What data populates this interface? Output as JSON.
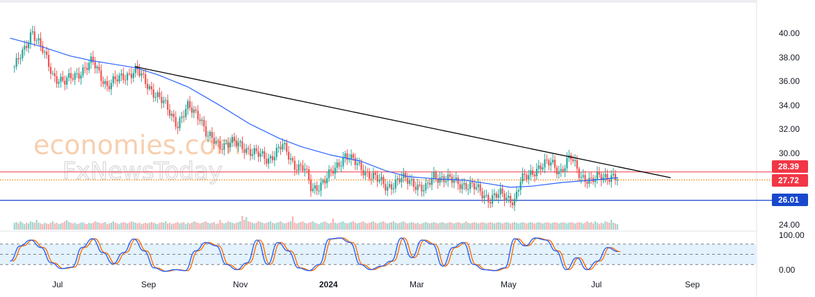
{
  "watermark": {
    "line1": "economies.com",
    "line2": "FxNewsToday"
  },
  "colors": {
    "up": "#26a69a",
    "down": "#ef5350",
    "ma": "#2962ff",
    "trend": "#000000",
    "resistance": "#f23645",
    "support": "#1848cc",
    "current": "#f57c00",
    "stoch_k": "#2962ff",
    "stoch_d": "#ff6d00",
    "stoch_band": "#e3f2fd"
  },
  "chart_data": [
    {
      "type": "candlestick",
      "title": "",
      "x_tick_labels": [
        "Jul",
        "Sep",
        "Nov",
        "2024",
        "Mar",
        "May",
        "Jul",
        "Sep"
      ],
      "y_tick_labels": [
        "40.00",
        "38.00",
        "36.00",
        "34.00",
        "32.00",
        "30.00",
        "24.00"
      ],
      "ylim": [
        23.4,
        41.2
      ],
      "grid": false,
      "price_tags": [
        {
          "value": 28.39,
          "label": "28.39",
          "role": "resistance"
        },
        {
          "value": 27.72,
          "label": "27.72",
          "role": "last price"
        },
        {
          "value": 26.01,
          "label": "26.01",
          "role": "support"
        }
      ],
      "close_anchors": [
        {
          "x": "2023-06-01",
          "y": 37.2
        },
        {
          "x": "2023-06-08",
          "y": 38.6
        },
        {
          "x": "2023-06-13",
          "y": 40.3
        },
        {
          "x": "2023-06-20",
          "y": 38.6
        },
        {
          "x": "2023-06-27",
          "y": 36.5
        },
        {
          "x": "2023-07-05",
          "y": 35.9
        },
        {
          "x": "2023-07-14",
          "y": 36.6
        },
        {
          "x": "2023-07-24",
          "y": 37.6
        },
        {
          "x": "2023-08-03",
          "y": 35.6
        },
        {
          "x": "2023-08-14",
          "y": 36.4
        },
        {
          "x": "2023-08-23",
          "y": 36.9
        },
        {
          "x": "2023-08-31",
          "y": 35.6
        },
        {
          "x": "2023-09-10",
          "y": 34.2
        },
        {
          "x": "2023-09-20",
          "y": 32.4
        },
        {
          "x": "2023-09-27",
          "y": 33.8
        },
        {
          "x": "2023-10-05",
          "y": 33.1
        },
        {
          "x": "2023-10-10",
          "y": 31.4
        },
        {
          "x": "2023-10-18",
          "y": 30.6
        },
        {
          "x": "2023-10-26",
          "y": 30.9
        },
        {
          "x": "2023-11-08",
          "y": 30.2
        },
        {
          "x": "2023-11-20",
          "y": 29.4
        },
        {
          "x": "2023-11-30",
          "y": 30.6
        },
        {
          "x": "2023-12-08",
          "y": 29.0
        },
        {
          "x": "2023-12-15",
          "y": 28.7
        },
        {
          "x": "2023-12-20",
          "y": 26.8
        },
        {
          "x": "2023-12-27",
          "y": 27.5
        },
        {
          "x": "2024-01-05",
          "y": 28.6
        },
        {
          "x": "2024-01-12",
          "y": 29.9
        },
        {
          "x": "2024-01-22",
          "y": 28.7
        },
        {
          "x": "2024-01-31",
          "y": 28.0
        },
        {
          "x": "2024-02-09",
          "y": 27.1
        },
        {
          "x": "2024-02-19",
          "y": 27.8
        },
        {
          "x": "2024-02-26",
          "y": 27.6
        },
        {
          "x": "2024-03-06",
          "y": 26.8
        },
        {
          "x": "2024-03-12",
          "y": 28.1
        },
        {
          "x": "2024-03-22",
          "y": 27.7
        },
        {
          "x": "2024-03-31",
          "y": 27.4
        },
        {
          "x": "2024-04-10",
          "y": 27.0
        },
        {
          "x": "2024-04-19",
          "y": 26.1
        },
        {
          "x": "2024-04-26",
          "y": 26.5
        },
        {
          "x": "2024-05-06",
          "y": 26.0
        },
        {
          "x": "2024-05-10",
          "y": 27.6
        },
        {
          "x": "2024-05-20",
          "y": 28.6
        },
        {
          "x": "2024-05-31",
          "y": 29.2
        },
        {
          "x": "2024-06-06",
          "y": 28.4
        },
        {
          "x": "2024-06-13",
          "y": 29.6
        },
        {
          "x": "2024-06-20",
          "y": 28.1
        },
        {
          "x": "2024-06-27",
          "y": 27.5
        },
        {
          "x": "2024-07-03",
          "y": 28.1
        },
        {
          "x": "2024-07-10",
          "y": 28.0
        },
        {
          "x": "2024-07-15",
          "y": 27.72
        }
      ],
      "moving_average": [
        {
          "x": "2023-05-29",
          "y": 39.6
        },
        {
          "x": "2023-06-19",
          "y": 38.9
        },
        {
          "x": "2023-07-09",
          "y": 38.1
        },
        {
          "x": "2023-07-24",
          "y": 37.7
        },
        {
          "x": "2023-08-08",
          "y": 37.4
        },
        {
          "x": "2023-08-23",
          "y": 37.1
        },
        {
          "x": "2023-09-07",
          "y": 36.5
        },
        {
          "x": "2023-09-27",
          "y": 35.5
        },
        {
          "x": "2023-10-18",
          "y": 34.0
        },
        {
          "x": "2023-11-08",
          "y": 32.4
        },
        {
          "x": "2023-11-28",
          "y": 31.2
        },
        {
          "x": "2023-12-13",
          "y": 30.5
        },
        {
          "x": "2024-01-02",
          "y": 29.8
        },
        {
          "x": "2024-01-22",
          "y": 29.3
        },
        {
          "x": "2024-02-08",
          "y": 28.5
        },
        {
          "x": "2024-02-23",
          "y": 28.0
        },
        {
          "x": "2024-03-14",
          "y": 27.8
        },
        {
          "x": "2024-04-02",
          "y": 27.7
        },
        {
          "x": "2024-04-18",
          "y": 27.4
        },
        {
          "x": "2024-05-03",
          "y": 27.1
        },
        {
          "x": "2024-05-18",
          "y": 27.2
        },
        {
          "x": "2024-06-07",
          "y": 27.5
        },
        {
          "x": "2024-06-27",
          "y": 27.7
        },
        {
          "x": "2024-07-15",
          "y": 27.9
        }
      ],
      "trendline": [
        {
          "x": "2023-08-22",
          "y": 37.2
        },
        {
          "x": "2024-08-20",
          "y": 27.9
        }
      ],
      "volume_relative": [
        0.5,
        0.55,
        0.45,
        0.6,
        0.5,
        0.4,
        0.5,
        0.45,
        0.6,
        0.55,
        0.5,
        0.7,
        0.5,
        0.45,
        0.4,
        0.5,
        0.45,
        0.4,
        0.5,
        0.6,
        0.45,
        0.5,
        0.4,
        0.45,
        0.5,
        0.6,
        0.7,
        0.55,
        0.5,
        0.45,
        0.5,
        0.4,
        0.45,
        0.5,
        0.55,
        0.45,
        0.4,
        0.5,
        0.45,
        0.5,
        0.6,
        0.55,
        0.5,
        0.45,
        0.5,
        0.55,
        0.4,
        0.45,
        0.5,
        0.6,
        0.5,
        0.45,
        0.4,
        0.5,
        0.55,
        0.5,
        0.45,
        0.5,
        0.6,
        0.55,
        0.5,
        0.45,
        0.5,
        0.4,
        0.45,
        0.5,
        0.45,
        0.5,
        0.55,
        0.5,
        0.45,
        0.4,
        0.5,
        0.55,
        0.5,
        0.6,
        0.45,
        0.5,
        0.4,
        0.45,
        0.5,
        0.55,
        0.45,
        0.5,
        0.55,
        0.4,
        0.5,
        0.45,
        0.5,
        0.6,
        0.55,
        0.5,
        0.45,
        0.5,
        0.55,
        0.6,
        0.5,
        0.45,
        0.5,
        0.55,
        0.4,
        0.45,
        0.7,
        0.5,
        0.45,
        0.5,
        0.6,
        0.55,
        0.5,
        0.45,
        0.5,
        0.55,
        0.6,
        1.0,
        0.7,
        0.9,
        0.6,
        0.55,
        0.5,
        0.45,
        0.5,
        0.6,
        0.55,
        0.5,
        0.45,
        0.5,
        0.55,
        0.6,
        0.5,
        0.45,
        0.5,
        0.55,
        0.6,
        0.5,
        0.45,
        0.5,
        0.55,
        0.6,
        0.95,
        0.5,
        0.45,
        0.5,
        0.55,
        0.6,
        0.5,
        0.45,
        0.5,
        0.55,
        0.6,
        0.5,
        0.45,
        0.4,
        0.5,
        0.55,
        0.6,
        0.5,
        0.45,
        0.5,
        0.8,
        0.5,
        0.45,
        0.5,
        0.55,
        0.6,
        0.5,
        0.45,
        0.5,
        0.55,
        0.6,
        0.5,
        0.45,
        0.5,
        0.55,
        0.6,
        0.5,
        0.45,
        0.5,
        0.55,
        0.6,
        0.5,
        0.45,
        0.5,
        0.55,
        0.6,
        0.5,
        0.45,
        0.5,
        0.55,
        0.6,
        0.5,
        0.45,
        0.5,
        0.55,
        0.6,
        0.5,
        0.45,
        0.5,
        0.55,
        0.5,
        0.45,
        0.5,
        0.4,
        0.45,
        0.5,
        0.55,
        0.5,
        0.45,
        0.5,
        0.55,
        0.5,
        0.45,
        0.5,
        0.55,
        0.5,
        0.45,
        0.5,
        0.55,
        0.5,
        0.45,
        0.5,
        0.55,
        0.5,
        0.45,
        0.5,
        0.6,
        0.5,
        0.45,
        0.5,
        0.55,
        0.5,
        0.45,
        0.5,
        0.55,
        0.5,
        0.45,
        0.5,
        0.55,
        0.5,
        0.45,
        0.5,
        0.55,
        0.5,
        0.45,
        0.5,
        0.55,
        0.5,
        0.45,
        0.5,
        0.55,
        0.5,
        0.45,
        0.5,
        0.55,
        0.5,
        0.45,
        0.5,
        0.55,
        0.5,
        0.45,
        0.5,
        0.55,
        0.5,
        0.45,
        0.5,
        0.55,
        0.5,
        0.45,
        0.5,
        0.55,
        0.5,
        0.45,
        0.5,
        0.55,
        0.5,
        0.45,
        0.5,
        0.55,
        0.5,
        0.45,
        0.5,
        0.55,
        0.5,
        0.45,
        0.5,
        0.6
      ]
    },
    {
      "type": "line",
      "title": "",
      "y_tick_labels": [
        "100.00",
        "0.00"
      ],
      "ylim": [
        -20,
        110
      ],
      "band": [
        20,
        80
      ],
      "dashed_levels": [
        20,
        50,
        80
      ],
      "k_line": [
        {
          "x": "2023-05-29",
          "y": 30
        },
        {
          "x": "2023-06-05",
          "y": 75
        },
        {
          "x": "2023-06-12",
          "y": 92
        },
        {
          "x": "2023-06-19",
          "y": 70
        },
        {
          "x": "2023-06-26",
          "y": 25
        },
        {
          "x": "2023-07-03",
          "y": 8
        },
        {
          "x": "2023-07-10",
          "y": 12
        },
        {
          "x": "2023-07-17",
          "y": 70
        },
        {
          "x": "2023-07-24",
          "y": 96
        },
        {
          "x": "2023-07-31",
          "y": 55
        },
        {
          "x": "2023-08-07",
          "y": 22
        },
        {
          "x": "2023-08-14",
          "y": 55
        },
        {
          "x": "2023-08-21",
          "y": 95
        },
        {
          "x": "2023-08-28",
          "y": 60
        },
        {
          "x": "2023-09-04",
          "y": 10
        },
        {
          "x": "2023-09-11",
          "y": 0
        },
        {
          "x": "2023-09-18",
          "y": 5
        },
        {
          "x": "2023-09-25",
          "y": 2
        },
        {
          "x": "2023-10-02",
          "y": 60
        },
        {
          "x": "2023-10-09",
          "y": 85
        },
        {
          "x": "2023-10-16",
          "y": 75
        },
        {
          "x": "2023-10-23",
          "y": 20
        },
        {
          "x": "2023-10-30",
          "y": 5
        },
        {
          "x": "2023-11-06",
          "y": 25
        },
        {
          "x": "2023-11-13",
          "y": 92
        },
        {
          "x": "2023-11-20",
          "y": 20
        },
        {
          "x": "2023-11-27",
          "y": 85
        },
        {
          "x": "2023-12-04",
          "y": 60
        },
        {
          "x": "2023-12-11",
          "y": 10
        },
        {
          "x": "2023-12-18",
          "y": 2
        },
        {
          "x": "2023-12-25",
          "y": 20
        },
        {
          "x": "2024-01-01",
          "y": 95
        },
        {
          "x": "2024-01-08",
          "y": 98
        },
        {
          "x": "2024-01-15",
          "y": 85
        },
        {
          "x": "2024-01-22",
          "y": 20
        },
        {
          "x": "2024-01-29",
          "y": 5
        },
        {
          "x": "2024-02-05",
          "y": 15
        },
        {
          "x": "2024-02-12",
          "y": 30
        },
        {
          "x": "2024-02-19",
          "y": 98
        },
        {
          "x": "2024-02-26",
          "y": 40
        },
        {
          "x": "2024-03-04",
          "y": 92
        },
        {
          "x": "2024-03-11",
          "y": 80
        },
        {
          "x": "2024-03-18",
          "y": 15
        },
        {
          "x": "2024-03-25",
          "y": 70
        },
        {
          "x": "2024-04-01",
          "y": 85
        },
        {
          "x": "2024-04-08",
          "y": 20
        },
        {
          "x": "2024-04-15",
          "y": 5
        },
        {
          "x": "2024-04-22",
          "y": 2
        },
        {
          "x": "2024-04-29",
          "y": 10
        },
        {
          "x": "2024-05-06",
          "y": 96
        },
        {
          "x": "2024-05-13",
          "y": 75
        },
        {
          "x": "2024-05-20",
          "y": 98
        },
        {
          "x": "2024-05-27",
          "y": 92
        },
        {
          "x": "2024-06-03",
          "y": 60
        },
        {
          "x": "2024-06-10",
          "y": 5
        },
        {
          "x": "2024-06-17",
          "y": 40
        },
        {
          "x": "2024-06-24",
          "y": 5
        },
        {
          "x": "2024-07-01",
          "y": 30
        },
        {
          "x": "2024-07-08",
          "y": 70
        },
        {
          "x": "2024-07-15",
          "y": 58
        }
      ]
    }
  ]
}
